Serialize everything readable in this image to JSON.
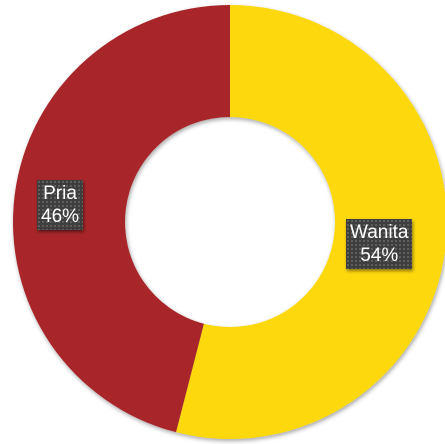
{
  "chart_data": {
    "type": "pie",
    "categories": [
      "Wanita",
      "Pria"
    ],
    "values": [
      54,
      46
    ],
    "series": [
      {
        "values": [
          54,
          46
        ]
      }
    ],
    "labels": [
      {
        "category": "Wanita",
        "percent": "54%"
      },
      {
        "category": "Pria",
        "percent": "46%"
      }
    ],
    "colors": [
      "#fcd808",
      "#a8262a"
    ],
    "donut": true,
    "legend": "none"
  }
}
